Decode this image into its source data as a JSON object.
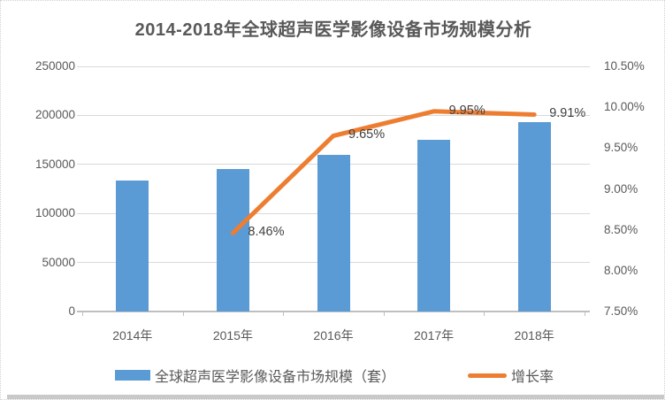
{
  "chart_data": {
    "type": "bar+line",
    "title": "2014-2018年全球超声医学影像设备市场规模分析",
    "categories": [
      "2014年",
      "2015年",
      "2016年",
      "2017年",
      "2018年"
    ],
    "series": [
      {
        "name": "全球超声医学影像设备市场规模（套）",
        "type": "bar",
        "axis": "left",
        "color": "#5B9BD5",
        "values": [
          134000,
          145300,
          159400,
          175500,
          193000
        ]
      },
      {
        "name": "增长率",
        "type": "line",
        "axis": "right",
        "color": "#ED7D31",
        "values": [
          null,
          8.46,
          9.65,
          9.95,
          9.91
        ],
        "point_labels": [
          null,
          "8.46%",
          "9.65%",
          "9.95%",
          "9.91%"
        ]
      }
    ],
    "left_axis": {
      "min": 0,
      "max": 250000,
      "step": 50000,
      "tick_labels": [
        "250000",
        "200000",
        "150000",
        "100000",
        "50000",
        "0"
      ]
    },
    "right_axis": {
      "min": 7.5,
      "max": 10.5,
      "step": 0.5,
      "tick_labels": [
        "10.50%",
        "10.00%",
        "9.50%",
        "9.00%",
        "8.50%",
        "8.00%",
        "7.50%"
      ]
    },
    "grid": true,
    "legend_position": "bottom",
    "colors": {
      "bar": "#5B9BD5",
      "line": "#ED7D31",
      "grid": "#D9D9D9",
      "axis_line": "#BFBFBF",
      "title_text": "#595959",
      "axis_text": "#595959",
      "data_label_text": "#404040"
    }
  }
}
